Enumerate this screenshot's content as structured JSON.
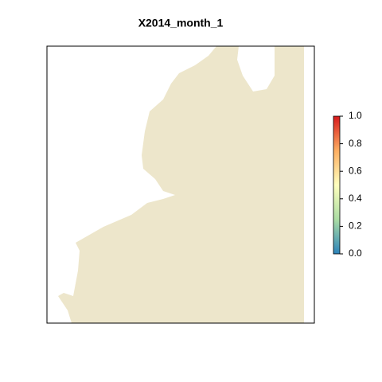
{
  "title": "X2014_month_1",
  "colorbar": {
    "lim": [
      0,
      1
    ],
    "ticks": [
      {
        "value": 0,
        "label": "0.0"
      },
      {
        "value": 0.2,
        "label": "0.2"
      },
      {
        "value": 0.4,
        "label": "0.4"
      },
      {
        "value": 0.6,
        "label": "0.6"
      },
      {
        "value": 0.8,
        "label": "0.8"
      },
      {
        "value": 1,
        "label": "1.0"
      }
    ]
  }
}
